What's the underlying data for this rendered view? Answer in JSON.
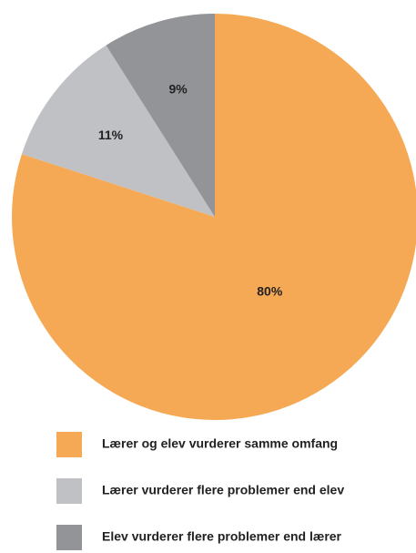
{
  "chart_data": {
    "type": "pie",
    "categories": [
      "Lærer og elev vurderer samme omfang",
      "Lærer vurderer flere problemer end elev",
      "Elev vurderer flere problemer end lærer"
    ],
    "values": [
      80,
      11,
      9
    ],
    "value_labels": [
      "80%",
      "11%",
      "9%"
    ],
    "colors": [
      "#f6a955",
      "#c0c1c4",
      "#939497"
    ]
  }
}
